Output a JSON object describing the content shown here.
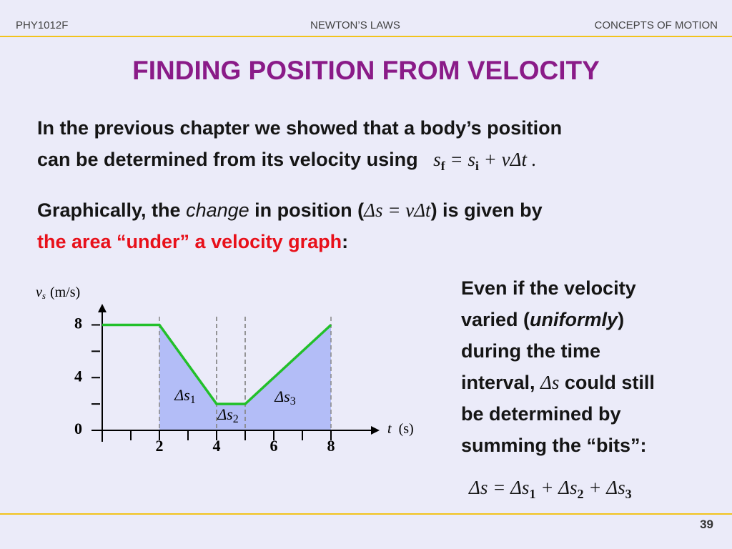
{
  "header": {
    "course": "PHY1012F",
    "section": "NEWTON’S LAWS",
    "topic": "CONCEPTS OF MOTION"
  },
  "title": "FINDING POSITION FROM VELOCITY",
  "paragraph1": [
    "In the previous chapter we showed that a body’s position",
    "can be determined from its velocity using"
  ],
  "equation1": [
    "s",
    "f",
    " = s",
    "i",
    " + vΔt ."
  ],
  "paragraph2": [
    "Graphically, the ",
    "change",
    " in position (",
    "Δs = vΔt",
    ") is given by",
    "the area “under” a velocity graph",
    ":"
  ],
  "side_text": [
    "Even if the velocity",
    "varied (",
    "uniformly",
    ")",
    "during the time",
    "interval, ",
    "Δs",
    " could still",
    "be determined by",
    "summing the “bits”:"
  ],
  "equation2": [
    "Δs = Δs",
    "1",
    " + Δs",
    "2",
    " + Δs",
    "3"
  ],
  "chart_data": {
    "type": "line",
    "x": [
      0,
      2,
      4,
      5,
      8
    ],
    "values": [
      8,
      8,
      2,
      2,
      8
    ],
    "color": "#22c02a",
    "area_color": "#b3bdf7",
    "xlim": [
      0,
      9.7
    ],
    "ylim": [
      0,
      9.6
    ],
    "xticks": [
      2,
      4,
      6,
      8
    ],
    "x_minor_ticks": [
      1,
      3,
      5,
      7
    ],
    "yticks": [
      0,
      4,
      8
    ],
    "y_minor_ticks": [
      2,
      6
    ],
    "y_label": {
      "symbol": "v",
      "sub": "s",
      "unit": "(m/s)"
    },
    "x_label": {
      "symbol": "t",
      "unit": "(s)"
    },
    "regions": [
      {
        "name": "Δs",
        "sub": "1",
        "x": [
          2,
          4
        ]
      },
      {
        "name": "Δs",
        "sub": "2",
        "x": [
          4,
          5
        ]
      },
      {
        "name": "Δs",
        "sub": "3",
        "x": [
          5,
          8
        ]
      }
    ]
  },
  "page_number": "39"
}
